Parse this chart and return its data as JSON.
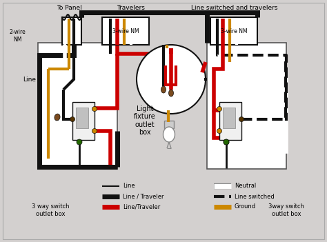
{
  "bg_color": "#d3d0cf",
  "labels": {
    "to_panel": "To Panel",
    "travelers": "Travelers",
    "line_switched_travelers": "Line switched and travelers",
    "two_wire_nm": "2-wire\nNM",
    "three_wire_nm_left": "3-wire NM",
    "three_wire_nm_right": "3-wire NM",
    "line_label": "Line",
    "light_fixture": "Light\nfixture\noutlet\nbox",
    "three_way_left": "3 way switch\noutlet box",
    "three_way_right": "3way switch\noutlet box"
  },
  "legend_col1": [
    {
      "label": "Line",
      "color": "#111111",
      "ls": "-",
      "lw": 1.5
    },
    {
      "label": "Line / Traveler",
      "color": "#111111",
      "ls": "-",
      "lw": 5
    },
    {
      "label": "Line/Traveler",
      "color": "#cc0000",
      "ls": "-",
      "lw": 5
    }
  ],
  "legend_col2": [
    {
      "label": "Neutral",
      "color": "#ffffff",
      "ls": "-",
      "lw": 5
    },
    {
      "label": "Line switched",
      "color": "#111111",
      "ls": "--",
      "lw": 3
    },
    {
      "label": "Ground",
      "color": "#cc8800",
      "ls": "-",
      "lw": 5
    }
  ]
}
